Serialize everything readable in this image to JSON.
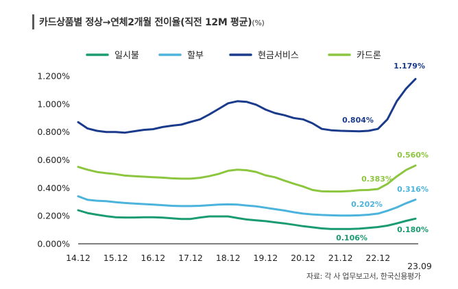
{
  "chart_data": {
    "type": "line",
    "title": "카드상품별 정상→연체2개월 전이율(직전 12M 평균)",
    "title_unit": "(%)",
    "xlabel": "",
    "ylabel": "",
    "ylim": [
      0,
      1.2
    ],
    "yticks": [
      "0.000%",
      "0.200%",
      "0.400%",
      "0.600%",
      "0.800%",
      "1.000%",
      "1.200%"
    ],
    "xticks": [
      "14.12",
      "15.12",
      "16.12",
      "17.12",
      "18.12",
      "19.12",
      "20.12",
      "21.12",
      "22.12",
      "23.09"
    ],
    "x_count": 37,
    "legend_position": "top",
    "series": [
      {
        "name": "일시불",
        "color": "#1a9b72",
        "values": [
          0.24,
          0.22,
          0.208,
          0.198,
          0.19,
          0.188,
          0.188,
          0.19,
          0.19,
          0.187,
          0.182,
          0.178,
          0.178,
          0.188,
          0.196,
          0.196,
          0.196,
          0.184,
          0.174,
          0.168,
          0.162,
          0.154,
          0.146,
          0.136,
          0.126,
          0.118,
          0.11,
          0.106,
          0.106,
          0.106,
          0.108,
          0.114,
          0.12,
          0.13,
          0.146,
          0.164,
          0.18
        ]
      },
      {
        "name": "할부",
        "color": "#4bb3dc",
        "values": [
          0.34,
          0.315,
          0.308,
          0.305,
          0.298,
          0.292,
          0.288,
          0.284,
          0.28,
          0.276,
          0.272,
          0.27,
          0.27,
          0.272,
          0.276,
          0.28,
          0.282,
          0.28,
          0.274,
          0.268,
          0.258,
          0.248,
          0.238,
          0.226,
          0.216,
          0.21,
          0.206,
          0.204,
          0.202,
          0.202,
          0.204,
          0.208,
          0.216,
          0.236,
          0.26,
          0.29,
          0.316
        ]
      },
      {
        "name": "현금서비스",
        "color": "#1a3a8c",
        "values": [
          0.87,
          0.825,
          0.808,
          0.8,
          0.8,
          0.795,
          0.805,
          0.815,
          0.82,
          0.835,
          0.845,
          0.852,
          0.872,
          0.89,
          0.925,
          0.965,
          1.005,
          1.02,
          1.015,
          0.995,
          0.96,
          0.935,
          0.92,
          0.9,
          0.89,
          0.862,
          0.822,
          0.812,
          0.808,
          0.806,
          0.804,
          0.808,
          0.822,
          0.89,
          1.02,
          1.11,
          1.179
        ]
      },
      {
        "name": "카드론",
        "color": "#8cc63f",
        "values": [
          0.55,
          0.53,
          0.514,
          0.505,
          0.498,
          0.488,
          0.484,
          0.48,
          0.476,
          0.473,
          0.468,
          0.466,
          0.466,
          0.472,
          0.484,
          0.5,
          0.522,
          0.53,
          0.526,
          0.514,
          0.49,
          0.476,
          0.452,
          0.43,
          0.41,
          0.385,
          0.375,
          0.374,
          0.374,
          0.377,
          0.383,
          0.385,
          0.392,
          0.428,
          0.482,
          0.528,
          0.56
        ]
      }
    ],
    "annotations": [
      {
        "series": "현금서비스",
        "text": "1.179%"
      },
      {
        "series": "현금서비스",
        "text": "0.804%"
      },
      {
        "series": "카드론",
        "text": "0.560%"
      },
      {
        "series": "카드론",
        "text": "0.383%"
      },
      {
        "series": "할부",
        "text": "0.316%"
      },
      {
        "series": "할부",
        "text": "0.202%"
      },
      {
        "series": "일시불",
        "text": "0.180%"
      },
      {
        "series": "일시불",
        "text": "0.106%"
      }
    ],
    "source": "자료: 각 사 업무보고서, 한국신용평가"
  }
}
